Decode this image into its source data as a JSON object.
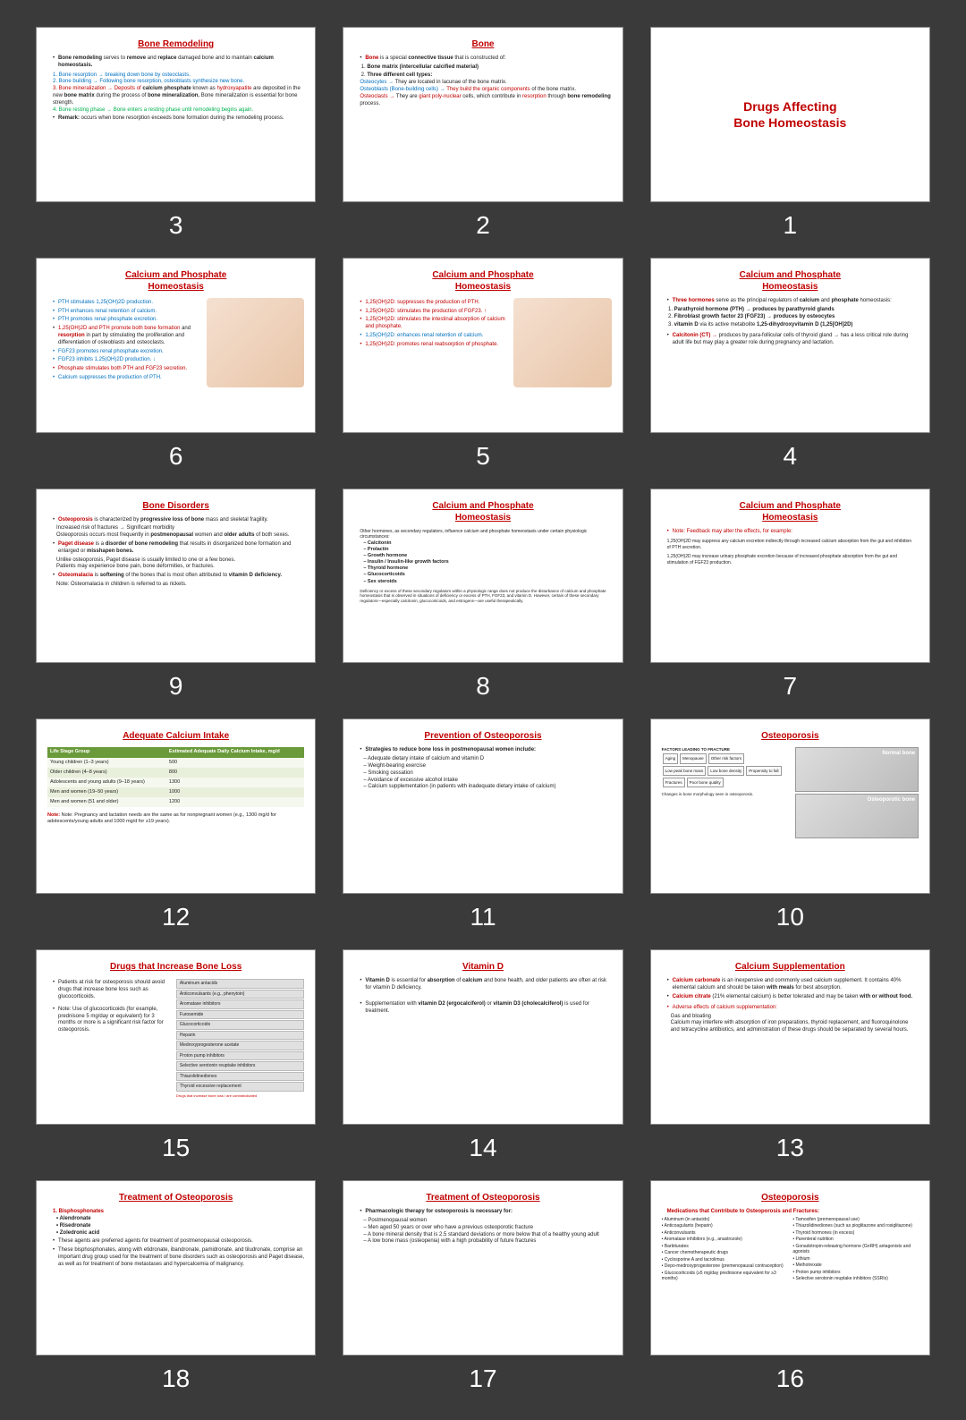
{
  "background": "#3a3a3a",
  "aspect": "16/10",
  "numbers": [
    "3",
    "2",
    "1",
    "6",
    "5",
    "4",
    "9",
    "8",
    "7",
    "12",
    "11",
    "10",
    "15",
    "14",
    "13",
    "18",
    "17",
    "16"
  ],
  "s1": {
    "title": "Drugs Affecting\nBone Homeostasis"
  },
  "s2": {
    "title": "Bone",
    "l1a": "Bone",
    "l1b": " is a special ",
    "l1c": "connective tissue",
    "l1d": " that is constructed of:",
    "o1": "Bone matrix (intercellular calcified material)",
    "o2": "Three different cell types:",
    "c1a": "Osteocytes →",
    "c1b": " They are located in lacunae of the bone matrix.",
    "c2a": "Osteoblasts (Bone-building cells) →",
    "c2b": " They build the organic components",
    "c2c": " of the bone matrix.",
    "c3a": "Osteoclasts →",
    "c3b": " They are ",
    "c3c": "giant poly-nuclear",
    "c3d": " cells, which contribute in ",
    "c3e": "resorption",
    "c3f": " through",
    "c3g": "bone remodeling",
    "c3h": " process."
  },
  "s3": {
    "title": "Bone Remodeling",
    "l1a": "Bone remodeling",
    "l1b": " serves to ",
    "l1c": "remove",
    "l1d": " and ",
    "l1e": "replace",
    "l1f": " damaged bone and to maintain ",
    "l1g": "calcium homeostasis.",
    "p1": "1. Bone resorption → breaking down bone by osteoclasts.",
    "p2": "2. Bone building → Following bone resorption, osteoblasts synthesize new bone.",
    "p3a": "3. Bone mineralization → Deposits of ",
    "p3b": "calcium phosphate",
    "p3c": " known as ",
    "p3d": "hydroxyapatite",
    "p3e": " are deposited in the new ",
    "p3f": "bone matrix",
    "p3g": " during the process of ",
    "p3h": "bone mineralization.",
    "p3i": " Bone mineralization is essential for bone strength.",
    "p4a": "4. Bone resting phase → Bone enters a resting phase until remodeling begins again.",
    "p5a": "Remark:",
    "p5b": " occurs when bone resorption exceeds bone formation during the remodeling process."
  },
  "s4": {
    "title": "Calcium and Phosphate\nHomeostasis",
    "l1a": "Three hormones",
    "l1b": " serve as the principal regulators of ",
    "l1c": "calcium",
    "l1d": " and ",
    "l1e": "phosphate",
    "l1f": " homeostasis:",
    "o1": "Parathyroid hormone (PTH) → produces by parathyroid glands",
    "o2": "Fibroblast growth factor 23 (FGF23) → produces by osteocytes",
    "o3a": "vitamin D",
    "o3b": " via its active metabolite ",
    "o3c": "1,25-dihydroxyvitamin D (1,25[OH]2D)",
    "n1a": "Calcitonin (CT) →",
    "n1b": " produces by para-follicular cells of thyroid gland → has a less critical role during adult life but may play a greater role during pregnancy and lactation."
  },
  "s5": {
    "title": "Calcium and Phosphate\nHomeostasis",
    "l1": "1,25(OH)2D: suppresses the production of PTH.",
    "l2": "1,25(OH)2D: stimulates the production of FGF23. ↑",
    "l3": "1,25(OH)2D: stimulates the intestinal absorption of calcium and phosphate.",
    "l4": "1,25(OH)2D: enhances renal retention of calcium.",
    "l5": "1,25(OH)2D: promotes renal reabsorption of phosphate."
  },
  "s6": {
    "title": "Calcium and Phosphate\nHomeostasis",
    "l1": "PTH stimulates 1,25(OH)2D production.",
    "l2": "PTH enhances renal retention of calcium.",
    "l3": "PTH promotes renal phosphate excretion.",
    "l4a": "1,25(OH)2D and PTH promote both bone formation",
    "l4b": " and ",
    "l4c": "resorption",
    "l4d": " in part by stimulating the proliferation and differentiation of osteoblasts and osteoclasts.",
    "l5": "FGF23 promotes renal phosphate excretion.",
    "l6": "FGF23 inhibits 1,25(OH)2D production. ↓",
    "l7": "Phosphate stimulates both PTH and FGF23 secretion.",
    "l8": "Calcium suppresses the production of PTH."
  },
  "s7": {
    "title": "Calcium and Phosphate\nHomeostasis",
    "l1": "Note: Feedback may alter the effects, for example:",
    "l2": "1,25(OH)2D may suppress any calcium excretion indirectly through increased calcium absorption from the gut and inhibition of PTH secretion.",
    "l3": "1,25(OH)2D may increase urinary phosphate excretion because of increased phosphate absorption from the gut and stimulation of FGF23 production."
  },
  "s8": {
    "title": "Calcium and Phosphate\nHomeostasis",
    "l1": "Other hormones, as secondary regulators, influence calcium and phosphate homeostasis under certain physiologic circumstances:",
    "items": [
      "Calcitonin",
      "Prolactin",
      "Growth hormone",
      "Insulin / Insulin-like growth factors",
      "Thyroid hormone",
      "Glucocorticoids",
      "Sex steroids"
    ],
    "l2": "Deficiency or excess of these secondary regulators within a physiologic range does not produce the disturbance of calcium and phosphate homeostasis that is observed in situations of deficiency or excess of PTH, FGF23, and vitamin D. However, certain of these secondary regulators—especially calcitonin, glucocorticoids, and estrogens—are useful therapeutically."
  },
  "s9": {
    "title": "Bone Disorders",
    "l1a": "Osteoporosis",
    "l1b": " is characterized by ",
    "l1c": "progressive loss of bone",
    "l1d": " mass and skeletal fragility.",
    "l2": "Increased risk of fractures → Significant morbidity",
    "l3a": "Osteoporosis occurs most frequently in ",
    "l3b": "postmenopausal",
    "l3c": " women and ",
    "l3d": "older adults",
    "l3e": " of both sexes.",
    "l4a": "Paget disease",
    "l4b": " is a ",
    "l4c": "disorder of bone remodeling",
    "l4d": " that results in disorganized bone formation and enlarged or ",
    "l4e": "misshapen bones.",
    "l5": "Unlike osteoporosis, Paget disease is usually limited to one or a few bones.",
    "l6": "Patients may experience bone pain, bone deformities, or fractures.",
    "l7a": "Osteomalacia",
    "l7b": " is ",
    "l7c": "softening",
    "l7d": " of the bones that is most often attributed to ",
    "l7e": "vitamin D deficiency.",
    "l8": "Note: Osteomalacia in children is referred to as rickets."
  },
  "s10": {
    "title": "Osteoporosis",
    "boxtitle": "FACTORS LEADING TO FRACTURE",
    "boxes": [
      "Aging",
      "Menopause",
      "Other risk factors",
      "Low peak bone mass",
      "Low bone density",
      "Propensity to fall",
      "Fractures",
      "Poor bone quality"
    ],
    "cap": "Changes in bone morphology seen in osteoporosis.",
    "lab1": "Normal bone",
    "lab2": "Osteoporotic bone"
  },
  "s11": {
    "title": "Prevention of Osteoporosis",
    "l1": "Strategies to reduce bone loss in postmenopausal women include:",
    "items": [
      "Adequate dietary intake of calcium and vitamin D",
      "Weight-bearing exercise",
      "Smoking cessation",
      "Avoidance of excessive alcohol intake",
      "Calcium supplementation (in patients with inadequate dietary intake of calcium)"
    ]
  },
  "s12": {
    "title": "Adequate Calcium Intake",
    "th1": "Life Stage Group",
    "th2": "Estimated Adequate Daily Calcium Intake, mg/d",
    "rows": [
      [
        "Young children (1–3 years)",
        "500"
      ],
      [
        "Older children (4–8 years)",
        "800"
      ],
      [
        "Adolescents and young adults (9–18 years)",
        "1300"
      ],
      [
        "Men and women (19–50 years)",
        "1000"
      ],
      [
        "Men and women (51 and older)",
        "1200"
      ]
    ],
    "note": "Note: Pregnancy and lactation needs are the same as for nonpregnant women (e.g., 1300 mg/d for adolescents/young adults and 1000 mg/d for ≥19 years)."
  },
  "s13": {
    "title": "Calcium Supplementation",
    "l1a": "Calcium carbonate",
    "l1b": " is an inexpensive and commonly used calcium supplement. It contains 40% elemental calcium and should be taken ",
    "l1c": "with meals",
    "l1d": " for best absorption.",
    "l2a": "Calcium citrate",
    "l2b": " (21% elemental calcium) is better tolerated and may be taken ",
    "l2c": "with or without food.",
    "h": "Adverse effects of calcium supplementation:",
    "a1": "Gas and bloating",
    "a2": "Calcium may interfere with absorption of iron preparations, thyroid replacement, and fluoroquinolone and tetracycline antibiotics, and administration of these drugs should be separated by several hours."
  },
  "s14": {
    "title": "Vitamin D",
    "l1a": "Vitamin D",
    "l1b": " is essential for ",
    "l1c": "absorption",
    "l1d": " of ",
    "l1e": "calcium",
    "l1f": " and bone health, and older patients are often at risk for vitamin D deficiency.",
    "l2a": "Supplementation with ",
    "l2b": "vitamin D2 (ergocalciferol)",
    "l2c": " or ",
    "l2d": "vitamin D3 (cholecalciferol)",
    "l2e": " is used for treatment."
  },
  "s15": {
    "title": "Drugs that Increase Bone Loss",
    "l1": "Patients at risk for osteoporosis should avoid drugs that increase bone loss such as glucocorticoids.",
    "l2": "Note: Use of glucocorticoids (for example, prednisone 5 mg/day or equivalent) for 3 months or more is a significant risk factor for osteoporosis.",
    "box": [
      "Aluminum antacids",
      "Anticonvulsants (e.g., phenytoin)",
      "Aromatase inhibitors",
      "Furosemide",
      "Glucocorticoids",
      "Heparin",
      "Medroxyprogesterone acetate",
      "Proton pump inhibitors",
      "Selective serotonin reuptake inhibitors",
      "Thiazolidinediones",
      "Thyroid excessive replacement"
    ],
    "boxcap": "Drugs that increase bone loss / are contraindicated"
  },
  "s16": {
    "title": "Osteoporosis",
    "sub": "Medications that Contribute to Osteoporosis and Fractures:",
    "colA": [
      "Aluminum (in antacids)",
      "Anticoagulants (heparin)",
      "Anticonvulsants",
      "Aromatase inhibitors (e.g., anastrozole)",
      "Barbiturates",
      "Cancer chemotherapeutic drugs",
      "Cyclosporine A and tacrolimus",
      "Depo-medroxyprogesterone (premenopausal contraception)",
      "Glucocorticoids (≥5 mg/day prednisone equivalent for ≥3 months)"
    ],
    "colB": [
      "Tamoxifen (premenopausal use)",
      "Thiazolidinediones (such as pioglitazone and rosiglitazone)",
      "Thyroid hormones (in excess)",
      "Parenteral nutrition",
      "Gonadotropin-releasing hormone (GnRH) antagonists and agonists",
      "Lithium",
      "Methotrexate",
      "Proton pump inhibitors",
      "Selective serotonin reuptake inhibitors (SSRIs)"
    ]
  },
  "s17": {
    "title": "Treatment of Osteoporosis",
    "l1": "Pharmacologic therapy for osteoporosis is necessary for:",
    "items": [
      "Postmenopausal women",
      "Men aged 50 years or over who have a previous osteoporotic fracture",
      "A bone mineral density that is 2.5 standard deviations or more below that of a healthy young adult",
      "A low bone mass (osteopenia) with a high probability of future fractures"
    ]
  },
  "s18": {
    "title": "Treatment of Osteoporosis",
    "h": "1. Bisphosphonates",
    "items": [
      "Alendronate",
      "Risedronate",
      "Zoledronic acid"
    ],
    "l1": "These agents are preferred agents for treatment of postmenopausal osteoporosis.",
    "l2": "These bisphosphonates, along with etidronate, ibandronate, pamidronate, and tiludronate, comprise an important drug group used for the treatment of bone disorders such as osteoporosis and Paget disease, as well as for treatment of bone metastases and hypercalcemia of malignancy."
  }
}
